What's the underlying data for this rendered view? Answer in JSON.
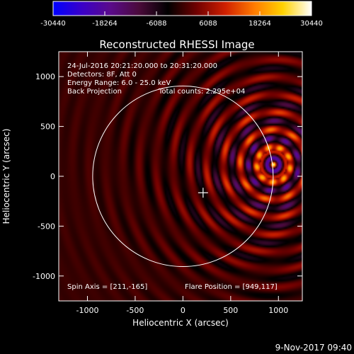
{
  "chart_data": {
    "type": "heatmap",
    "title": "Reconstructed RHESSI Image",
    "xlabel": "Heliocentric X (arcsec)",
    "ylabel": "Heliocentric Y (arcsec)",
    "xlim": [
      -1300,
      1250
    ],
    "ylim": [
      -1250,
      1250
    ],
    "x_ticks": [
      -1000,
      -500,
      0,
      500,
      1000
    ],
    "y_ticks": [
      -1000,
      -500,
      0,
      500,
      1000
    ],
    "colorbar": {
      "min": -30440,
      "max": 30440,
      "ticks": [
        "-30440",
        "-18264",
        "-6088",
        "6088",
        "18264",
        "30440"
      ],
      "colors": [
        "#0000ff",
        "#3a00c8",
        "#5a0a8a",
        "#4a0a3a",
        "#000000",
        "#700000",
        "#d02000",
        "#ff7a00",
        "#ffd200",
        "#ffffff"
      ]
    },
    "annotations": [
      "24-Jul-2016 20:21:20.000 to 20:31:20.000",
      "Detectors: 8F, Att 0",
      "Energy Range: 6.0 - 25.0 keV",
      "Back Projection",
      "Total counts: 2.295e+04"
    ],
    "spin_axis_label": "Spin Axis = [211,-165]",
    "flare_position_label": "Flare Position = [949,117]",
    "spin_axis": [
      211,
      -165
    ],
    "flare_position": [
      949,
      117
    ],
    "limb_radius": 945
  },
  "timestamp": "9-Nov-2017 09:40"
}
